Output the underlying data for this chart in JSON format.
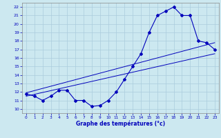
{
  "background_color": "#cce8f0",
  "line_color": "#0000bb",
  "grid_color": "#aaccdd",
  "xlabel": "Graphe des températures (°c)",
  "ylim": [
    9.5,
    22.5
  ],
  "xlim": [
    -0.5,
    23.5
  ],
  "yticks": [
    10,
    11,
    12,
    13,
    14,
    15,
    16,
    17,
    18,
    19,
    20,
    21,
    22
  ],
  "xticks": [
    0,
    1,
    2,
    3,
    4,
    5,
    6,
    7,
    8,
    9,
    10,
    11,
    12,
    13,
    14,
    15,
    16,
    17,
    18,
    19,
    20,
    21,
    22,
    23
  ],
  "series1_x": [
    0,
    1,
    2,
    3,
    4,
    5,
    6,
    7,
    8,
    9,
    10,
    11,
    12,
    13,
    14,
    15,
    16,
    17,
    18,
    19,
    20,
    21,
    22,
    23
  ],
  "series1_y": [
    11.8,
    11.5,
    11.0,
    11.5,
    12.2,
    12.2,
    11.0,
    11.0,
    10.3,
    10.4,
    11.0,
    12.0,
    13.5,
    15.0,
    16.5,
    19.0,
    21.0,
    21.5,
    22.0,
    21.0,
    21.0,
    18.0,
    17.8,
    17.0
  ],
  "line2_x": [
    0,
    23
  ],
  "line2_y": [
    11.5,
    16.5
  ],
  "line3_x": [
    0,
    23
  ],
  "line3_y": [
    11.9,
    17.8
  ]
}
